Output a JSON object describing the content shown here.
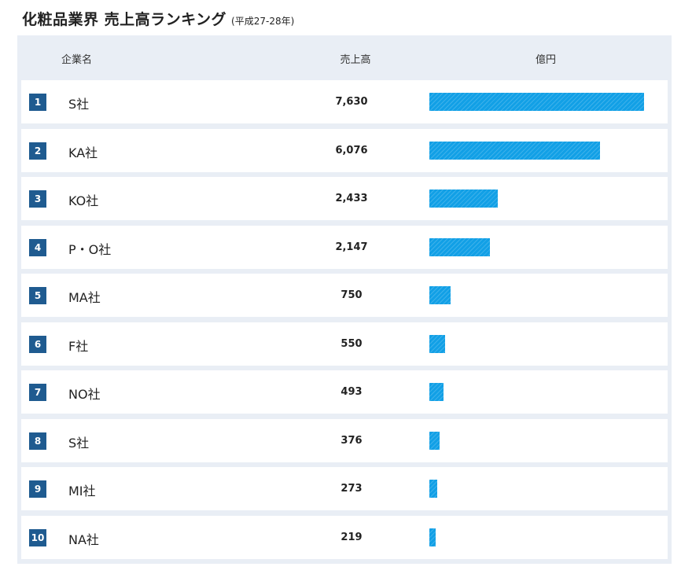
{
  "title": {
    "main": "化粧品業界 売上高ランキング",
    "sub": "(平成27-28年)"
  },
  "header": {
    "company": "企業名",
    "sales": "売上高",
    "unit": "億円"
  },
  "colors": {
    "bar": "#12a0e6",
    "badge": "#1f5b90",
    "panel": "#e9eef5"
  },
  "chart_data": {
    "type": "bar",
    "orientation": "horizontal",
    "title": "化粧品業界 売上高ランキング",
    "subtitle": "(平成27-28年)",
    "unit": "億円",
    "xlim": [
      0,
      7630
    ],
    "rows": [
      {
        "rank": "1",
        "name": "S社",
        "label": "7,630",
        "value": 7630
      },
      {
        "rank": "2",
        "name": "KA社",
        "label": "6,076",
        "value": 6076
      },
      {
        "rank": "3",
        "name": "KO社",
        "label": "2,433",
        "value": 2433
      },
      {
        "rank": "4",
        "name": "P・O社",
        "label": "2,147",
        "value": 2147
      },
      {
        "rank": "5",
        "name": "MA社",
        "label": "750",
        "value": 750
      },
      {
        "rank": "6",
        "name": "F社",
        "label": "550",
        "value": 550
      },
      {
        "rank": "7",
        "name": "NO社",
        "label": "493",
        "value": 493
      },
      {
        "rank": "8",
        "name": "S社",
        "label": "376",
        "value": 376
      },
      {
        "rank": "9",
        "name": "MI社",
        "label": "273",
        "value": 273
      },
      {
        "rank": "10",
        "name": "NA社",
        "label": "219",
        "value": 219
      }
    ]
  }
}
